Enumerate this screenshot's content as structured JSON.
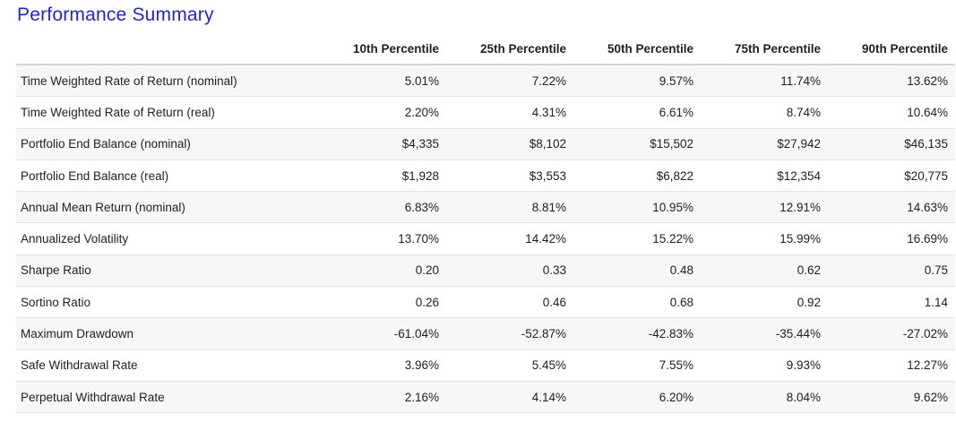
{
  "title": "Performance Summary",
  "columns": [
    "",
    "10th Percentile",
    "25th Percentile",
    "50th Percentile",
    "75th Percentile",
    "90th Percentile"
  ],
  "rows": [
    {
      "label": "Time Weighted Rate of Return (nominal)",
      "values": [
        "5.01%",
        "7.22%",
        "9.57%",
        "11.74%",
        "13.62%"
      ]
    },
    {
      "label": "Time Weighted Rate of Return (real)",
      "values": [
        "2.20%",
        "4.31%",
        "6.61%",
        "8.74%",
        "10.64%"
      ]
    },
    {
      "label": "Portfolio End Balance (nominal)",
      "values": [
        "$4,335",
        "$8,102",
        "$15,502",
        "$27,942",
        "$46,135"
      ]
    },
    {
      "label": "Portfolio End Balance (real)",
      "values": [
        "$1,928",
        "$3,553",
        "$6,822",
        "$12,354",
        "$20,775"
      ]
    },
    {
      "label": "Annual Mean Return (nominal)",
      "values": [
        "6.83%",
        "8.81%",
        "10.95%",
        "12.91%",
        "14.63%"
      ]
    },
    {
      "label": "Annualized Volatility",
      "values": [
        "13.70%",
        "14.42%",
        "15.22%",
        "15.99%",
        "16.69%"
      ]
    },
    {
      "label": "Sharpe Ratio",
      "values": [
        "0.20",
        "0.33",
        "0.48",
        "0.62",
        "0.75"
      ]
    },
    {
      "label": "Sortino Ratio",
      "values": [
        "0.26",
        "0.46",
        "0.68",
        "0.92",
        "1.14"
      ]
    },
    {
      "label": "Maximum Drawdown",
      "values": [
        "-61.04%",
        "-52.87%",
        "-42.83%",
        "-35.44%",
        "-27.02%"
      ]
    },
    {
      "label": "Safe Withdrawal Rate",
      "values": [
        "3.96%",
        "5.45%",
        "7.55%",
        "9.93%",
        "12.27%"
      ]
    },
    {
      "label": "Perpetual Withdrawal Rate",
      "values": [
        "2.16%",
        "4.14%",
        "6.20%",
        "8.04%",
        "9.62%"
      ]
    }
  ]
}
